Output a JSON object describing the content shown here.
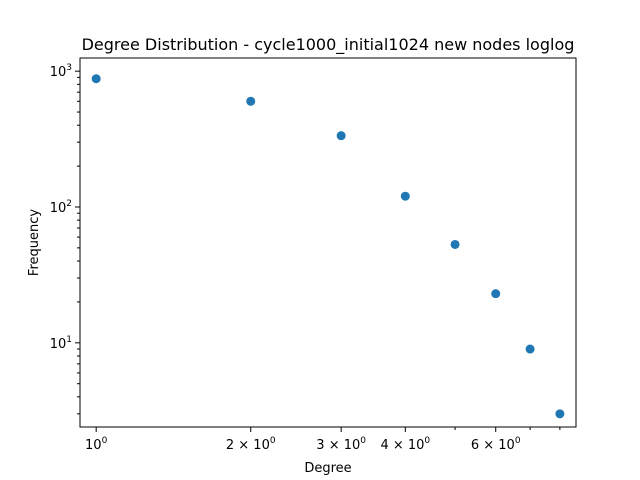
{
  "chart_data": {
    "type": "scatter",
    "title": "Degree Distribution - cycle1000_initial1024 new nodes loglog",
    "xlabel": "Degree",
    "ylabel": "Frequency",
    "xscale": "log",
    "yscale": "log",
    "xlim": [
      0.93,
      8.6
    ],
    "ylim": [
      2.4,
      1250
    ],
    "grid": false,
    "marker_color": "#1f77b4",
    "x_ticks": [
      {
        "value": 1,
        "base": "10",
        "exp": "0"
      },
      {
        "value": 2,
        "base": "2 × 10",
        "exp": "0"
      },
      {
        "value": 3,
        "base": "3 × 10",
        "exp": "0"
      },
      {
        "value": 4,
        "base": "4 × 10",
        "exp": "0"
      },
      {
        "value": 6,
        "base": "6 × 10",
        "exp": "0"
      }
    ],
    "x_minor_ticks": [
      5,
      7,
      8
    ],
    "y_ticks": [
      {
        "value": 10,
        "base": "10",
        "exp": "1"
      },
      {
        "value": 100,
        "base": "10",
        "exp": "2"
      },
      {
        "value": 1000,
        "base": "10",
        "exp": "3"
      }
    ],
    "y_minor_ticks": [
      3,
      4,
      5,
      6,
      7,
      8,
      9,
      20,
      30,
      40,
      50,
      60,
      70,
      80,
      90,
      200,
      300,
      400,
      500,
      600,
      700,
      800,
      900
    ],
    "points": [
      {
        "x": 1,
        "y": 880
      },
      {
        "x": 2,
        "y": 600
      },
      {
        "x": 3,
        "y": 335
      },
      {
        "x": 4,
        "y": 120
      },
      {
        "x": 5,
        "y": 53
      },
      {
        "x": 6,
        "y": 23
      },
      {
        "x": 7,
        "y": 9
      },
      {
        "x": 8,
        "y": 3
      }
    ]
  }
}
